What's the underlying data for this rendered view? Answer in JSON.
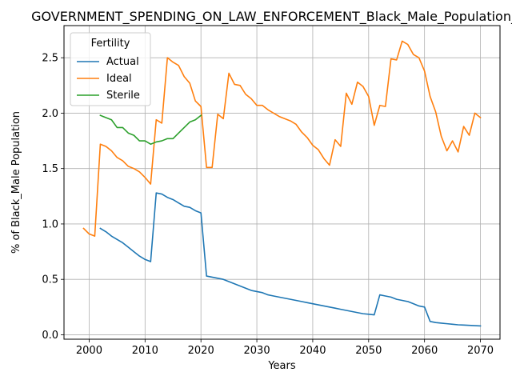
{
  "chart_data": {
    "type": "line",
    "title": "GOVERNMENT_SPENDING_ON_LAW_ENFORCEMENT_Black_Male_Population_Sc",
    "xlabel": "Years",
    "ylabel": "% of Black_Male Population",
    "xlim": [
      1995.5,
      2073.5
    ],
    "ylim": [
      -0.04,
      2.79
    ],
    "xticks": [
      2000,
      2010,
      2020,
      2030,
      2040,
      2050,
      2060,
      2070
    ],
    "yticks": [
      0.0,
      0.5,
      1.0,
      1.5,
      2.0,
      2.5
    ],
    "grid": true,
    "legend": {
      "title": "Fertility",
      "position": "top-left"
    },
    "series": [
      {
        "name": "Actual",
        "color": "#1f77b4",
        "x": [
          2002,
          2003,
          2004,
          2005,
          2006,
          2007,
          2008,
          2009,
          2010,
          2011,
          2012,
          2013,
          2014,
          2015,
          2016,
          2017,
          2018,
          2019,
          2020,
          2021,
          2022,
          2023,
          2024,
          2025,
          2026,
          2027,
          2028,
          2029,
          2030,
          2031,
          2032,
          2033,
          2034,
          2035,
          2036,
          2037,
          2038,
          2039,
          2040,
          2041,
          2042,
          2043,
          2044,
          2045,
          2046,
          2047,
          2048,
          2049,
          2050,
          2051,
          2052,
          2053,
          2054,
          2055,
          2056,
          2057,
          2058,
          2059,
          2060,
          2061,
          2062,
          2063,
          2064,
          2065,
          2066,
          2067,
          2068,
          2069,
          2070
        ],
        "values": [
          0.96,
          0.93,
          0.89,
          0.86,
          0.83,
          0.79,
          0.75,
          0.71,
          0.68,
          0.66,
          1.28,
          1.27,
          1.24,
          1.22,
          1.19,
          1.16,
          1.15,
          1.12,
          1.1,
          0.53,
          0.52,
          0.51,
          0.5,
          0.48,
          0.46,
          0.44,
          0.42,
          0.4,
          0.39,
          0.38,
          0.36,
          0.35,
          0.34,
          0.33,
          0.32,
          0.31,
          0.3,
          0.29,
          0.28,
          0.27,
          0.26,
          0.25,
          0.24,
          0.23,
          0.22,
          0.21,
          0.2,
          0.19,
          0.185,
          0.18,
          0.36,
          0.35,
          0.34,
          0.32,
          0.31,
          0.3,
          0.28,
          0.26,
          0.25,
          0.12,
          0.11,
          0.105,
          0.1,
          0.095,
          0.09,
          0.088,
          0.085,
          0.082,
          0.08
        ]
      },
      {
        "name": "Ideal",
        "color": "#ff7f0e",
        "x": [
          1999,
          2000,
          2001,
          2002,
          2003,
          2004,
          2005,
          2006,
          2007,
          2008,
          2009,
          2010,
          2011,
          2012,
          2013,
          2014,
          2015,
          2016,
          2017,
          2018,
          2019,
          2020,
          2021,
          2022,
          2023,
          2024,
          2025,
          2026,
          2027,
          2028,
          2029,
          2030,
          2031,
          2032,
          2033,
          2034,
          2035,
          2036,
          2037,
          2038,
          2039,
          2040,
          2041,
          2042,
          2043,
          2044,
          2045,
          2046,
          2047,
          2048,
          2049,
          2050,
          2051,
          2052,
          2053,
          2054,
          2055,
          2056,
          2057,
          2058,
          2059,
          2060,
          2061,
          2062,
          2063,
          2064,
          2065,
          2066,
          2067,
          2068,
          2069,
          2070
        ],
        "values": [
          0.96,
          0.91,
          0.89,
          1.72,
          1.7,
          1.66,
          1.6,
          1.57,
          1.52,
          1.5,
          1.47,
          1.42,
          1.36,
          1.94,
          1.91,
          2.5,
          2.46,
          2.43,
          2.33,
          2.27,
          2.11,
          2.06,
          1.51,
          1.51,
          1.99,
          1.95,
          2.36,
          2.26,
          2.25,
          2.17,
          2.13,
          2.07,
          2.07,
          2.03,
          2.0,
          1.97,
          1.95,
          1.93,
          1.9,
          1.83,
          1.78,
          1.71,
          1.67,
          1.59,
          1.53,
          1.76,
          1.7,
          2.18,
          2.08,
          2.28,
          2.24,
          2.15,
          1.89,
          2.07,
          2.06,
          2.49,
          2.48,
          2.65,
          2.62,
          2.53,
          2.5,
          2.38,
          2.15,
          2.01,
          1.79,
          1.66,
          1.75,
          1.65,
          1.88,
          1.8,
          2.0,
          1.96
        ]
      },
      {
        "name": "Sterile",
        "color": "#2ca02c",
        "x": [
          2002,
          2003,
          2004,
          2005,
          2006,
          2007,
          2008,
          2009,
          2010,
          2011,
          2012,
          2013,
          2014,
          2015,
          2016,
          2017,
          2018,
          2019,
          2020
        ],
        "values": [
          1.98,
          1.96,
          1.94,
          1.87,
          1.87,
          1.82,
          1.8,
          1.75,
          1.75,
          1.72,
          1.74,
          1.75,
          1.77,
          1.77,
          1.82,
          1.87,
          1.92,
          1.94,
          1.98
        ]
      }
    ]
  }
}
